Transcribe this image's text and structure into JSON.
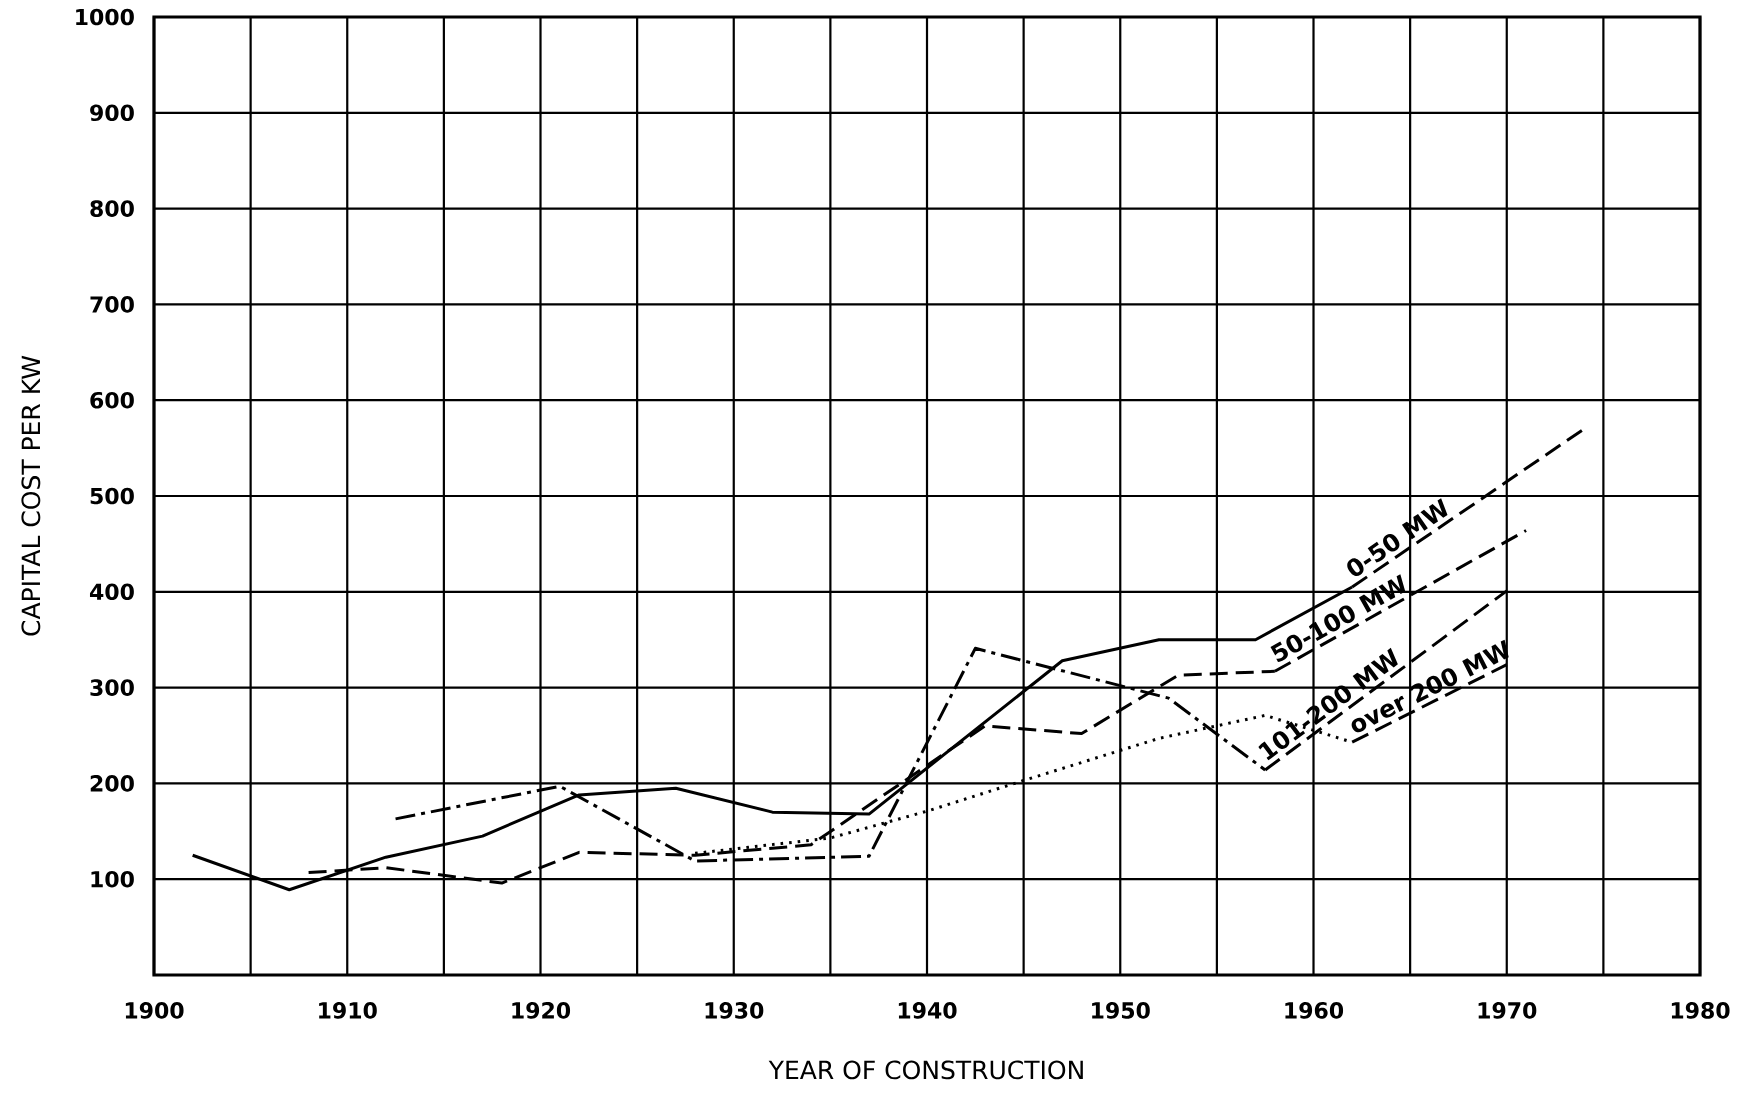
{
  "chart_data": {
    "type": "line",
    "xlabel": "YEAR OF CONSTRUCTION",
    "ylabel": "CAPITAL COST PER KW",
    "xlim": [
      1900,
      1980
    ],
    "ylim": [
      0,
      1000
    ],
    "xticks": [
      1900,
      {
        "value": 1905,
        "label": null
      },
      1910,
      {
        "value": 1915,
        "label": null
      },
      1920,
      {
        "value": 1925,
        "label": null
      },
      1930,
      {
        "value": 1935,
        "label": null
      },
      1940,
      {
        "value": 1945,
        "label": null
      },
      1950,
      {
        "value": 1955,
        "label": null
      },
      1960,
      {
        "value": 1965,
        "label": null
      },
      1970,
      {
        "value": 1975,
        "label": null
      },
      1980
    ],
    "yticks": [
      {
        "value": 0,
        "label": null
      },
      100,
      200,
      300,
      400,
      500,
      600,
      700,
      800,
      900,
      1000
    ],
    "grid": true,
    "series": [
      {
        "name": "0-50 MW",
        "color": "#000000",
        "line_style": "solid",
        "x": [
          1902,
          1907,
          1912,
          1917,
          1922,
          1927,
          1932,
          1937,
          1947,
          1952,
          1957,
          1962
        ],
        "values": [
          125,
          89,
          123,
          145,
          188,
          195,
          170,
          168,
          328,
          350,
          350,
          405
        ]
      },
      {
        "color": "#000000",
        "line_style": "dashed",
        "x": [
          1962,
          1974
        ],
        "values": [
          405,
          570
        ]
      },
      {
        "name": "50-100 MW",
        "color": "#000000",
        "line_style": "dashed",
        "x": [
          1908,
          1912,
          1918,
          1922,
          1928,
          1934,
          1943,
          1948,
          1953,
          1958
        ],
        "values": [
          107,
          112,
          96,
          128,
          125,
          136,
          260,
          252,
          313,
          317
        ]
      },
      {
        "color": "#000000",
        "line_style": "dashed",
        "x": [
          1958,
          1971
        ],
        "values": [
          317,
          464
        ]
      },
      {
        "name": "101-200 MW",
        "color": "#000000",
        "line_style": "dashdot",
        "x": [
          1912.5,
          1921,
          1928,
          1937,
          1942.5,
          1952.5,
          1957.5
        ],
        "values": [
          163,
          197,
          119,
          124,
          341,
          289,
          214
        ]
      },
      {
        "color": "#000000",
        "line_style": "dashed",
        "x": [
          1957.5,
          1970
        ],
        "values": [
          214,
          401
        ]
      },
      {
        "name": "over 200 MW",
        "color": "#000000",
        "line_style": "dotted",
        "x": [
          1928,
          1935,
          1940,
          1945,
          1952,
          1957.5,
          1962
        ],
        "values": [
          127,
          143,
          171,
          203,
          247,
          271,
          243
        ]
      },
      {
        "color": "#000000",
        "line_style": "dashed",
        "x": [
          1962,
          1970
        ],
        "values": [
          243,
          324
        ]
      }
    ]
  }
}
